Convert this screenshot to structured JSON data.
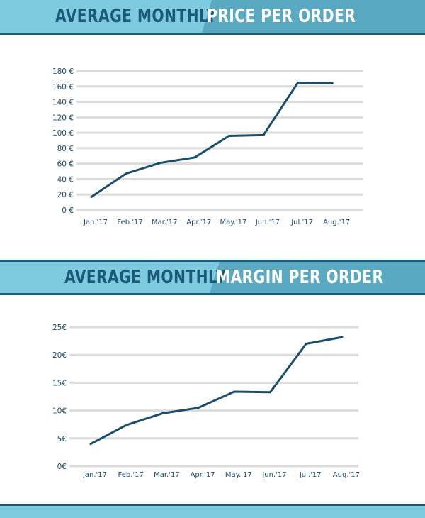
{
  "sections": [
    {
      "title_part1": "Average Monthly",
      "title_part2": "Price per order"
    },
    {
      "title_part1": "Average Monthly",
      "title_part2": "Margin per order"
    }
  ],
  "colors": {
    "line": "#1a4f6b",
    "grid": "#dcdcdc",
    "banner_light": "#7ecbe0",
    "banner_dark": "#5aa9c2",
    "banner_border": "#1a5d7a"
  },
  "chart_data": [
    {
      "type": "line",
      "categories": [
        "Jan.'17",
        "Feb.'17",
        "Mar.'17",
        "Apr.'17",
        "May.'17",
        "Jun.'17",
        "Jul.'17",
        "Aug.'17"
      ],
      "series": [
        {
          "values": [
            17,
            47,
            61,
            68,
            96,
            97,
            165,
            164
          ]
        }
      ],
      "y_ticks": [
        "0 €",
        "20 €",
        "40 €",
        "60 €",
        "80 €",
        "100 €",
        "120 €",
        "140 €",
        "160 €",
        "180 €"
      ],
      "ylim": [
        0,
        180
      ],
      "grid": true
    },
    {
      "type": "line",
      "categories": [
        "Jan.'17",
        "Feb.'17",
        "Mar.'17",
        "Apr.'17",
        "May.'17",
        "Jun.'17",
        "Jul.'17",
        "Aug.'17"
      ],
      "series": [
        {
          "values": [
            4.0,
            7.4,
            9.5,
            10.5,
            13.4,
            13.3,
            22.0,
            23.2
          ]
        }
      ],
      "y_ticks": [
        "0€",
        "5€",
        "10€",
        "15€",
        "20€",
        "25€"
      ],
      "ylim": [
        0,
        25
      ],
      "grid": true
    }
  ]
}
